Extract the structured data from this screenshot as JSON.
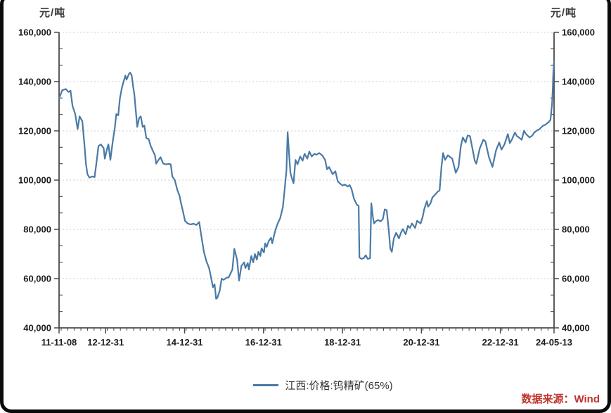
{
  "chart": {
    "unit_left": "元/吨",
    "unit_right": "元/吨",
    "series_label": "江西:价格:钨精矿(65%)",
    "source_note": "数据来源：Wind",
    "colors": {
      "line": "#4a7aa6",
      "grid": "#cdcdcd",
      "axis": "#4a4a4a",
      "tick_text": "#1c1c1c",
      "source_text": "#c0342e",
      "frame": "#0a0a0a",
      "background": "#ffffff"
    }
  },
  "chart_data": {
    "type": "line",
    "title": "",
    "ylabel": "元/吨",
    "grid": "horizontal-dotted",
    "legend_position": "bottom-center",
    "x_axis": {
      "range": [
        2011.82,
        2024.36
      ],
      "minor_step_years": 0.16667,
      "ticks": [
        {
          "label": "11-11-08",
          "year": 2011.82
        },
        {
          "label": "12-12-31",
          "year": 2013.0
        },
        {
          "label": "14-12-31",
          "year": 2015.0
        },
        {
          "label": "16-12-31",
          "year": 2017.0
        },
        {
          "label": "18-12-31",
          "year": 2019.0
        },
        {
          "label": "20-12-31",
          "year": 2021.0
        },
        {
          "label": "22-12-31",
          "year": 2023.0
        },
        {
          "label": "24-05-13",
          "year": 2024.36
        }
      ]
    },
    "y_axis": {
      "range": [
        40000,
        160000
      ],
      "unit": "元/吨",
      "sides": "both",
      "minor_divisions_per_major": 3,
      "ticks": [
        {
          "label": "160,000",
          "value": 160000
        },
        {
          "label": "140,000",
          "value": 140000
        },
        {
          "label": "120,000",
          "value": 120000
        },
        {
          "label": "100,000",
          "value": 100000
        },
        {
          "label": "80,000",
          "value": 80000
        },
        {
          "label": "60,000",
          "value": 60000
        },
        {
          "label": "40,000",
          "value": 40000
        }
      ]
    },
    "series": [
      {
        "name": "江西:价格:钨精矿(65%)",
        "color": "#4a7aa6",
        "points": [
          [
            2011.82,
            133100
          ],
          [
            2011.9,
            136500
          ],
          [
            2011.99,
            137000
          ],
          [
            2012.06,
            135800
          ],
          [
            2012.11,
            136300
          ],
          [
            2012.16,
            130200
          ],
          [
            2012.23,
            126800
          ],
          [
            2012.29,
            120700
          ],
          [
            2012.34,
            125900
          ],
          [
            2012.41,
            123900
          ],
          [
            2012.47,
            113000
          ],
          [
            2012.5,
            106700
          ],
          [
            2012.54,
            102400
          ],
          [
            2012.59,
            101000
          ],
          [
            2012.66,
            101500
          ],
          [
            2012.72,
            101200
          ],
          [
            2012.77,
            107300
          ],
          [
            2012.82,
            113900
          ],
          [
            2012.88,
            114500
          ],
          [
            2012.95,
            113000
          ],
          [
            2012.98,
            108700
          ],
          [
            2013.04,
            113000
          ],
          [
            2013.07,
            114500
          ],
          [
            2013.12,
            108200
          ],
          [
            2013.18,
            115800
          ],
          [
            2013.23,
            121000
          ],
          [
            2013.27,
            126800
          ],
          [
            2013.32,
            126300
          ],
          [
            2013.36,
            133100
          ],
          [
            2013.41,
            137400
          ],
          [
            2013.46,
            140300
          ],
          [
            2013.5,
            142500
          ],
          [
            2013.53,
            140800
          ],
          [
            2013.59,
            143100
          ],
          [
            2013.62,
            143700
          ],
          [
            2013.66,
            142500
          ],
          [
            2013.69,
            138800
          ],
          [
            2013.73,
            134500
          ],
          [
            2013.77,
            127000
          ],
          [
            2013.8,
            121600
          ],
          [
            2013.85,
            125300
          ],
          [
            2013.89,
            125900
          ],
          [
            2013.94,
            121600
          ],
          [
            2013.98,
            122100
          ],
          [
            2014.03,
            117000
          ],
          [
            2014.09,
            116700
          ],
          [
            2014.14,
            114000
          ],
          [
            2014.19,
            112100
          ],
          [
            2014.25,
            110100
          ],
          [
            2014.28,
            106700
          ],
          [
            2014.34,
            108200
          ],
          [
            2014.39,
            109300
          ],
          [
            2014.46,
            106700
          ],
          [
            2014.53,
            106400
          ],
          [
            2014.6,
            106600
          ],
          [
            2014.65,
            106400
          ],
          [
            2014.69,
            101500
          ],
          [
            2014.75,
            100100
          ],
          [
            2014.82,
            95800
          ],
          [
            2014.87,
            93800
          ],
          [
            2014.91,
            90600
          ],
          [
            2014.96,
            87200
          ],
          [
            2015.01,
            83500
          ],
          [
            2015.08,
            82400
          ],
          [
            2015.15,
            82000
          ],
          [
            2015.23,
            82300
          ],
          [
            2015.3,
            81800
          ],
          [
            2015.37,
            83000
          ],
          [
            2015.42,
            77800
          ],
          [
            2015.49,
            70900
          ],
          [
            2015.55,
            67200
          ],
          [
            2015.62,
            64300
          ],
          [
            2015.67,
            60600
          ],
          [
            2015.72,
            56500
          ],
          [
            2015.76,
            57700
          ],
          [
            2015.8,
            51800
          ],
          [
            2015.83,
            52200
          ],
          [
            2015.89,
            55100
          ],
          [
            2015.94,
            60000
          ],
          [
            2015.99,
            59500
          ],
          [
            2016.06,
            60300
          ],
          [
            2016.12,
            60600
          ],
          [
            2016.21,
            63700
          ],
          [
            2016.26,
            72100
          ],
          [
            2016.33,
            67700
          ],
          [
            2016.38,
            59200
          ],
          [
            2016.44,
            65200
          ],
          [
            2016.51,
            66600
          ],
          [
            2016.54,
            64300
          ],
          [
            2016.6,
            66300
          ],
          [
            2016.63,
            63700
          ],
          [
            2016.69,
            69200
          ],
          [
            2016.74,
            66600
          ],
          [
            2016.78,
            70000
          ],
          [
            2016.83,
            67700
          ],
          [
            2016.87,
            70900
          ],
          [
            2016.92,
            69200
          ],
          [
            2016.95,
            72300
          ],
          [
            2017.01,
            70600
          ],
          [
            2017.04,
            74300
          ],
          [
            2017.08,
            72900
          ],
          [
            2017.13,
            75200
          ],
          [
            2017.19,
            76600
          ],
          [
            2017.22,
            74300
          ],
          [
            2017.27,
            77800
          ],
          [
            2017.31,
            80100
          ],
          [
            2017.36,
            82400
          ],
          [
            2017.42,
            84500
          ],
          [
            2017.49,
            89000
          ],
          [
            2017.54,
            97000
          ],
          [
            2017.58,
            104000
          ],
          [
            2017.61,
            119500
          ],
          [
            2017.65,
            110000
          ],
          [
            2017.68,
            103000
          ],
          [
            2017.72,
            100700
          ],
          [
            2017.76,
            98700
          ],
          [
            2017.81,
            108200
          ],
          [
            2017.86,
            106400
          ],
          [
            2017.93,
            109600
          ],
          [
            2017.99,
            107900
          ],
          [
            2018.04,
            110700
          ],
          [
            2018.11,
            108700
          ],
          [
            2018.16,
            111600
          ],
          [
            2018.22,
            109600
          ],
          [
            2018.29,
            110700
          ],
          [
            2018.34,
            110300
          ],
          [
            2018.41,
            111000
          ],
          [
            2018.49,
            110000
          ],
          [
            2018.56,
            108200
          ],
          [
            2018.61,
            104400
          ],
          [
            2018.66,
            105300
          ],
          [
            2018.75,
            102400
          ],
          [
            2018.82,
            103600
          ],
          [
            2018.88,
            99500
          ],
          [
            2018.93,
            98700
          ],
          [
            2019.0,
            97800
          ],
          [
            2019.07,
            98200
          ],
          [
            2019.13,
            97400
          ],
          [
            2019.18,
            98000
          ],
          [
            2019.23,
            96400
          ],
          [
            2019.29,
            92500
          ],
          [
            2019.36,
            90100
          ],
          [
            2019.41,
            89500
          ],
          [
            2019.43,
            68600
          ],
          [
            2019.48,
            68000
          ],
          [
            2019.54,
            68300
          ],
          [
            2019.59,
            69500
          ],
          [
            2019.64,
            68000
          ],
          [
            2019.7,
            68300
          ],
          [
            2019.73,
            90600
          ],
          [
            2019.77,
            85200
          ],
          [
            2019.8,
            82400
          ],
          [
            2019.86,
            83500
          ],
          [
            2019.91,
            83800
          ],
          [
            2019.96,
            83200
          ],
          [
            2020.02,
            84100
          ],
          [
            2020.07,
            88100
          ],
          [
            2020.12,
            87800
          ],
          [
            2020.18,
            78600
          ],
          [
            2020.21,
            72300
          ],
          [
            2020.25,
            70900
          ],
          [
            2020.3,
            76300
          ],
          [
            2020.36,
            78600
          ],
          [
            2020.43,
            76300
          ],
          [
            2020.48,
            78600
          ],
          [
            2020.53,
            80100
          ],
          [
            2020.6,
            78000
          ],
          [
            2020.66,
            81500
          ],
          [
            2020.71,
            80600
          ],
          [
            2020.76,
            82400
          ],
          [
            2020.84,
            80600
          ],
          [
            2020.89,
            83500
          ],
          [
            2020.98,
            82400
          ],
          [
            2021.03,
            85000
          ],
          [
            2021.07,
            88100
          ],
          [
            2021.14,
            91500
          ],
          [
            2021.17,
            89200
          ],
          [
            2021.23,
            90600
          ],
          [
            2021.28,
            93000
          ],
          [
            2021.33,
            93800
          ],
          [
            2021.41,
            95300
          ],
          [
            2021.46,
            95800
          ],
          [
            2021.51,
            105800
          ],
          [
            2021.55,
            111000
          ],
          [
            2021.6,
            108200
          ],
          [
            2021.67,
            110100
          ],
          [
            2021.73,
            109300
          ],
          [
            2021.78,
            108700
          ],
          [
            2021.87,
            103000
          ],
          [
            2021.94,
            105300
          ],
          [
            2022.0,
            113900
          ],
          [
            2022.05,
            117300
          ],
          [
            2022.12,
            115300
          ],
          [
            2022.17,
            118100
          ],
          [
            2022.23,
            117900
          ],
          [
            2022.3,
            112100
          ],
          [
            2022.35,
            107900
          ],
          [
            2022.39,
            106700
          ],
          [
            2022.48,
            113000
          ],
          [
            2022.57,
            116400
          ],
          [
            2022.62,
            115800
          ],
          [
            2022.71,
            109300
          ],
          [
            2022.8,
            105300
          ],
          [
            2022.89,
            112100
          ],
          [
            2022.97,
            115300
          ],
          [
            2023.03,
            112400
          ],
          [
            2023.1,
            114400
          ],
          [
            2023.19,
            118700
          ],
          [
            2023.24,
            115000
          ],
          [
            2023.29,
            116400
          ],
          [
            2023.37,
            119300
          ],
          [
            2023.42,
            117900
          ],
          [
            2023.47,
            117300
          ],
          [
            2023.54,
            116400
          ],
          [
            2023.6,
            120100
          ],
          [
            2023.65,
            118700
          ],
          [
            2023.74,
            117300
          ],
          [
            2023.81,
            118100
          ],
          [
            2023.86,
            119300
          ],
          [
            2023.92,
            120100
          ],
          [
            2023.99,
            120700
          ],
          [
            2024.08,
            122100
          ],
          [
            2024.13,
            122400
          ],
          [
            2024.22,
            123500
          ],
          [
            2024.27,
            124500
          ],
          [
            2024.31,
            131000
          ],
          [
            2024.33,
            138000
          ],
          [
            2024.34,
            143500
          ],
          [
            2024.36,
            148000
          ]
        ]
      }
    ]
  }
}
